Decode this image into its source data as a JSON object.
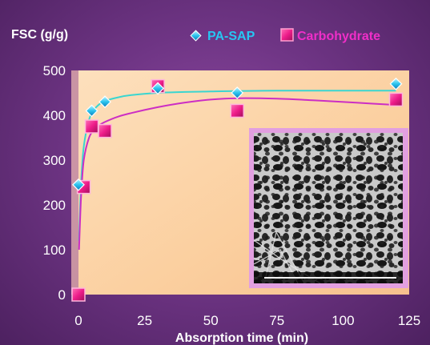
{
  "chart_data": {
    "type": "scatter",
    "title": "",
    "ylabel": "FSC (g/g)",
    "xlabel": "Absorption time (min)",
    "xlim": [
      0,
      125
    ],
    "ylim": [
      0,
      500
    ],
    "x_ticks": [
      "0",
      "25",
      "50",
      "75",
      "100",
      "125"
    ],
    "y_ticks": [
      "0",
      "100",
      "200",
      "300",
      "400",
      "500"
    ],
    "x_tick_values": [
      0,
      25,
      50,
      75,
      100,
      125
    ],
    "y_tick_values": [
      0,
      100,
      200,
      300,
      400,
      500
    ],
    "grid": false,
    "legend_position": "top",
    "series": [
      {
        "name": "PA-SAP",
        "marker": "diamond",
        "color": "#1ec8f0",
        "fit_color": "#3ad6d0",
        "x": [
          0,
          5,
          10,
          30,
          60,
          120
        ],
        "y": [
          245,
          410,
          430,
          460,
          450,
          470
        ],
        "fit_x": [
          0.2,
          1,
          2,
          4,
          6,
          8,
          10,
          15,
          20,
          30,
          40,
          50,
          60,
          75,
          90,
          105,
          120
        ],
        "fit_y": [
          120,
          250,
          330,
          390,
          413,
          425,
          432,
          440,
          445,
          450,
          452,
          453,
          454,
          455,
          455,
          455,
          455
        ]
      },
      {
        "name": "Carbohydrate",
        "marker": "square",
        "color": "#ee1c8a",
        "fit_color": "#cc2ec4",
        "x": [
          0,
          2,
          5,
          10,
          30,
          60,
          120
        ],
        "y": [
          0,
          240,
          375,
          365,
          465,
          410,
          435
        ],
        "fit_x": [
          0.2,
          1,
          2,
          4,
          6,
          8,
          10,
          15,
          20,
          30,
          40,
          50,
          60,
          75,
          90,
          105,
          120
        ],
        "fit_y": [
          100,
          220,
          300,
          350,
          368,
          378,
          385,
          397,
          405,
          418,
          428,
          435,
          438,
          437,
          433,
          428,
          423
        ]
      }
    ]
  },
  "colors": {
    "plot_background": "#fbd3a9",
    "frame": "#7a3d8e",
    "inset_border": "#e29fe0"
  },
  "inset": {
    "image": "sem-micrograph-porous-network"
  }
}
